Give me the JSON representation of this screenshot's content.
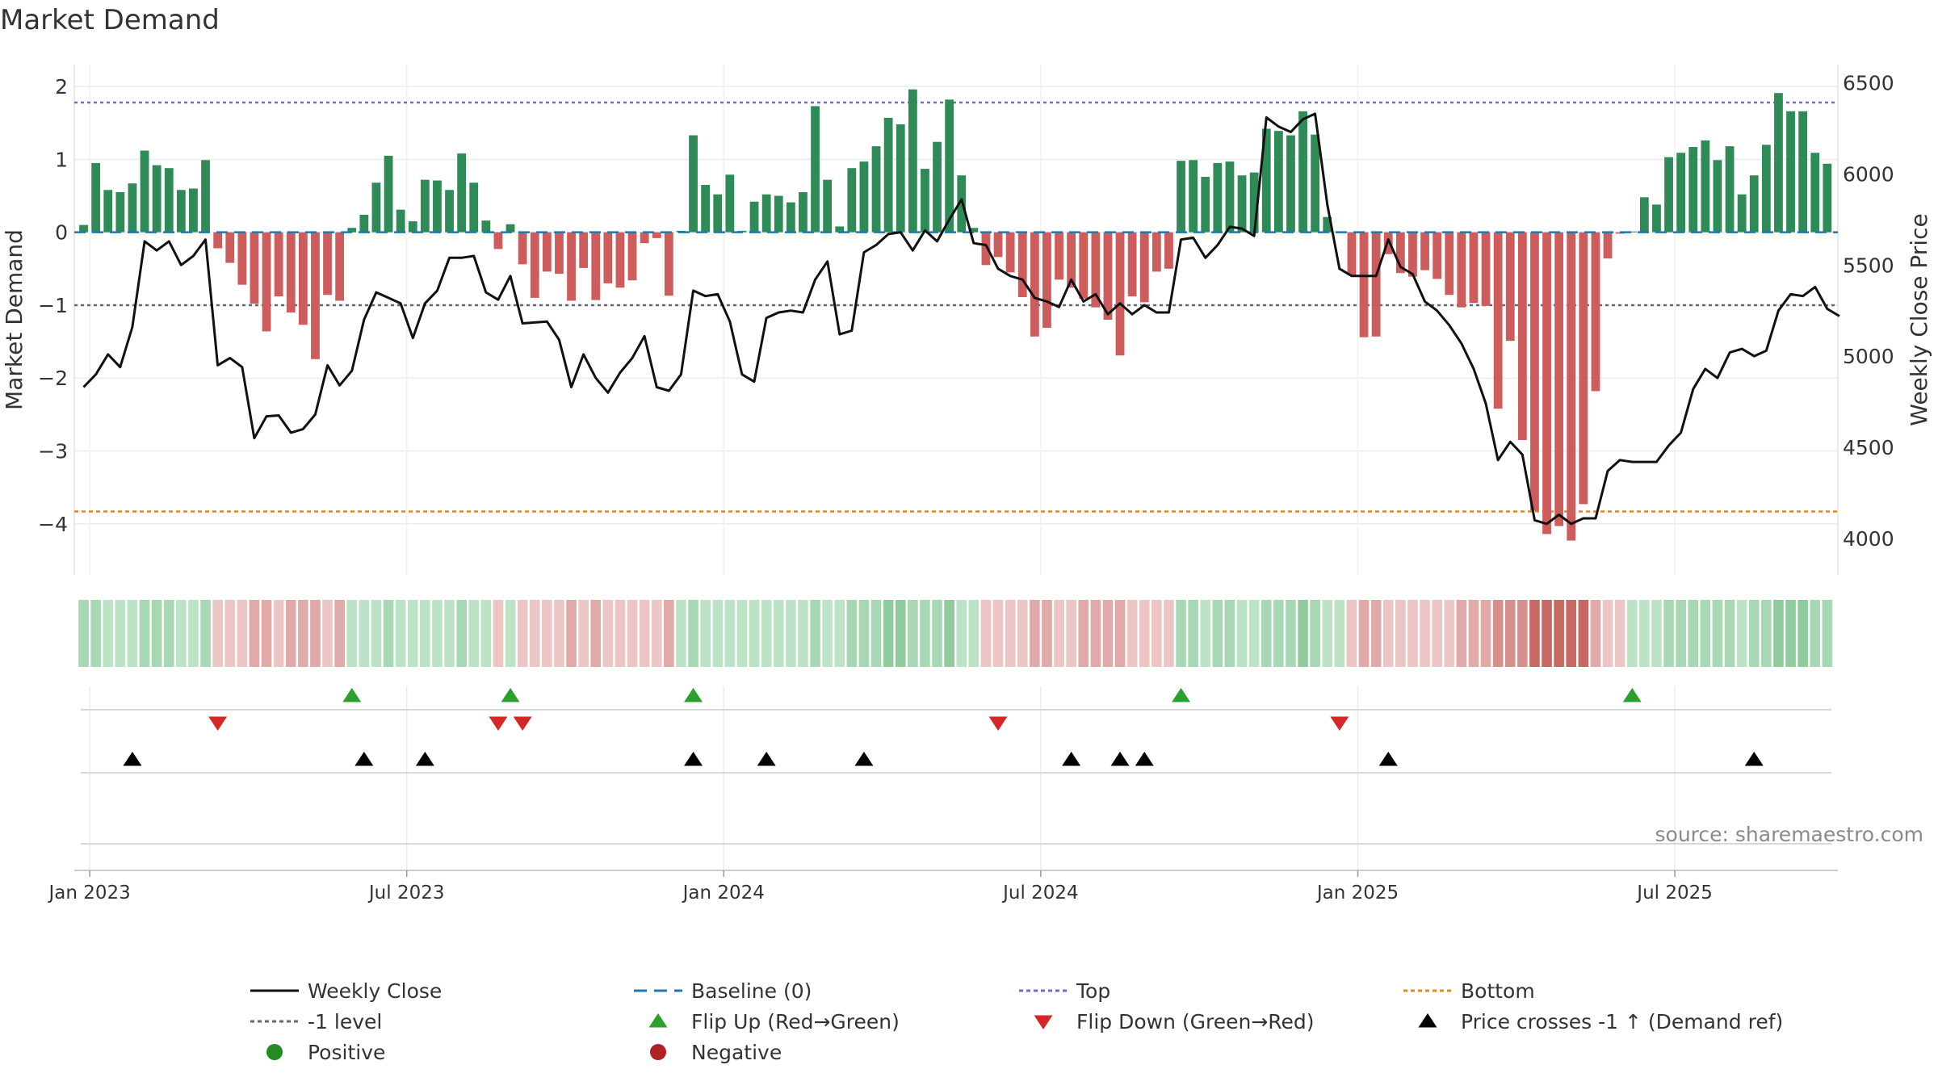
{
  "chart_data": {
    "type": "bar",
    "title": "Market Demand",
    "ylabel": "Market Demand",
    "y2label": "Weekly Close Price",
    "ylim": [
      -4.7,
      2.3
    ],
    "y2lim": [
      3800,
      6600
    ],
    "yticks": [
      "2",
      "1",
      "0",
      "−1",
      "−2",
      "−3",
      "−4"
    ],
    "y2ticks": [
      "6500",
      "6000",
      "5500",
      "5000",
      "4500",
      "4000"
    ],
    "xticks": [
      "Jan 2023",
      "Jul 2023",
      "Jan 2024",
      "Jul 2024",
      "Jan 2025",
      "Jul 2025"
    ],
    "xtick_weeks": [
      0.5,
      26.5,
      52.5,
      78.5,
      104.5,
      130.5
    ],
    "top_level": 1.78,
    "bottom_level": -3.83,
    "minus1_level": -1,
    "demand": [
      0.1,
      0.95,
      0.58,
      0.55,
      0.67,
      1.12,
      0.92,
      0.88,
      0.58,
      0.6,
      0.99,
      -0.22,
      -0.42,
      -0.72,
      -0.98,
      -1.36,
      -0.88,
      -1.1,
      -1.27,
      -1.74,
      -0.86,
      -0.94,
      0.06,
      0.24,
      0.68,
      1.05,
      0.31,
      0.15,
      0.72,
      0.71,
      0.58,
      1.08,
      0.68,
      0.16,
      -0.23,
      0.11,
      -0.44,
      -0.9,
      -0.54,
      -0.57,
      -0.94,
      -0.49,
      -0.93,
      -0.7,
      -0.76,
      -0.66,
      -0.15,
      -0.08,
      -0.87,
      0.02,
      1.33,
      0.65,
      0.52,
      0.79,
      0.02,
      0.42,
      0.52,
      0.5,
      0.41,
      0.55,
      1.73,
      0.72,
      0.08,
      0.88,
      0.97,
      1.18,
      1.57,
      1.48,
      1.96,
      0.87,
      1.24,
      1.82,
      0.78,
      0.06,
      -0.45,
      -0.34,
      -0.55,
      -0.89,
      -1.43,
      -1.31,
      -0.65,
      -0.76,
      -0.91,
      -1.03,
      -1.2,
      -1.69,
      -0.88,
      -0.96,
      -0.54,
      -0.5,
      0.98,
      0.99,
      0.76,
      0.95,
      0.97,
      0.78,
      0.82,
      1.42,
      1.39,
      1.33,
      1.66,
      1.34,
      0.21,
      0.01,
      -0.59,
      -1.44,
      -1.43,
      -0.3,
      -0.56,
      -0.61,
      -0.52,
      -0.64,
      -0.86,
      -1.03,
      -0.97,
      -1.01,
      -2.42,
      -1.49,
      -2.85,
      -3.82,
      -4.14,
      -4.03,
      -4.23,
      -3.73,
      -2.18,
      -0.36,
      -0.02,
      0.01,
      0.48,
      0.38,
      1.03,
      1.09,
      1.17,
      1.26,
      0.99,
      1.18,
      0.52,
      0.78,
      1.2,
      1.91,
      1.66,
      1.66,
      1.09,
      0.94
    ],
    "price": [
      4830,
      4900,
      5010,
      4940,
      5160,
      5630,
      5580,
      5630,
      5500,
      5550,
      5640,
      4950,
      4990,
      4940,
      4550,
      4670,
      4675,
      4580,
      4600,
      4680,
      4950,
      4840,
      4920,
      5200,
      5350,
      5320,
      5290,
      5100,
      5290,
      5360,
      5540,
      5540,
      5550,
      5350,
      5310,
      5440,
      5180,
      5185,
      5190,
      5090,
      4830,
      5010,
      4880,
      4800,
      4910,
      4990,
      5110,
      4830,
      4810,
      4900,
      5360,
      5330,
      5340,
      5190,
      4900,
      4860,
      5210,
      5240,
      5250,
      5240,
      5420,
      5520,
      5120,
      5140,
      5570,
      5610,
      5670,
      5680,
      5580,
      5690,
      5630,
      5750,
      5860,
      5620,
      5610,
      5480,
      5440,
      5420,
      5320,
      5300,
      5270,
      5420,
      5300,
      5340,
      5230,
      5290,
      5230,
      5280,
      5240,
      5240,
      5640,
      5650,
      5540,
      5610,
      5710,
      5700,
      5660,
      6310,
      6260,
      6230,
      6300,
      6330,
      5830,
      5480,
      5440,
      5440,
      5440,
      5640,
      5490,
      5450,
      5300,
      5250,
      5170,
      5070,
      4930,
      4740,
      4430,
      4530,
      4460,
      4100,
      4080,
      4130,
      4080,
      4110,
      4110,
      4370,
      4430,
      4420,
      4420,
      4420,
      4510,
      4580,
      4820,
      4930,
      4880,
      5020,
      5040,
      5000,
      5030,
      5250,
      5340,
      5330,
      5380,
      5260,
      5220
    ],
    "intensity_strip": [
      2,
      2,
      1,
      1,
      1,
      2,
      2,
      2,
      1,
      1,
      2,
      1,
      1,
      1,
      2,
      2,
      1,
      2,
      2,
      2,
      1,
      2,
      1,
      1,
      1,
      2,
      1,
      1,
      1,
      1,
      1,
      2,
      1,
      1,
      1,
      1,
      1,
      1,
      1,
      1,
      2,
      1,
      2,
      1,
      1,
      1,
      1,
      1,
      2,
      1,
      2,
      1,
      1,
      1,
      1,
      1,
      1,
      1,
      1,
      1,
      2,
      1,
      1,
      2,
      2,
      2,
      3,
      3,
      2,
      2,
      2,
      3,
      1,
      1,
      1,
      1,
      1,
      1,
      2,
      2,
      1,
      1,
      2,
      2,
      2,
      2,
      1,
      1,
      1,
      1,
      2,
      2,
      1,
      2,
      2,
      1,
      1,
      2,
      2,
      2,
      3,
      2,
      1,
      1,
      1,
      2,
      2,
      1,
      1,
      1,
      1,
      1,
      1,
      2,
      2,
      2,
      3,
      3,
      4,
      5,
      5,
      5,
      5,
      5,
      2,
      1,
      1,
      1,
      1,
      1,
      2,
      2,
      2,
      2,
      2,
      2,
      1,
      2,
      2,
      3,
      3,
      3,
      2,
      2
    ],
    "flip_up_weeks": [
      22,
      35,
      50,
      90,
      127
    ],
    "flip_down_weeks": [
      11,
      34,
      36,
      75,
      103
    ],
    "price_cross_weeks": [
      4,
      23,
      28,
      50,
      56,
      64,
      81,
      85,
      87,
      107,
      137
    ],
    "source_note": "source: sharemaestro.com",
    "legend": [
      "Weekly Close",
      "Baseline (0)",
      "Top",
      "Bottom",
      "-1 level",
      "Flip Up (Red→Green)",
      "Flip Down (Green→Red)",
      "Price crosses -1 ↑ (Demand ref)",
      "Positive",
      "Negative"
    ],
    "colors": {
      "positive": "#2e8b57",
      "negative": "#cd5c5c",
      "price": "#111111",
      "baseline": "#1f77b4",
      "top": "#6b6bd6",
      "bottom": "#e08a1e",
      "minus1": "#666677",
      "flip_up": "#2ca02c",
      "flip_down": "#d62728",
      "cross": "#000000",
      "legend_positive": "#228b22",
      "legend_negative": "#b22222"
    }
  }
}
